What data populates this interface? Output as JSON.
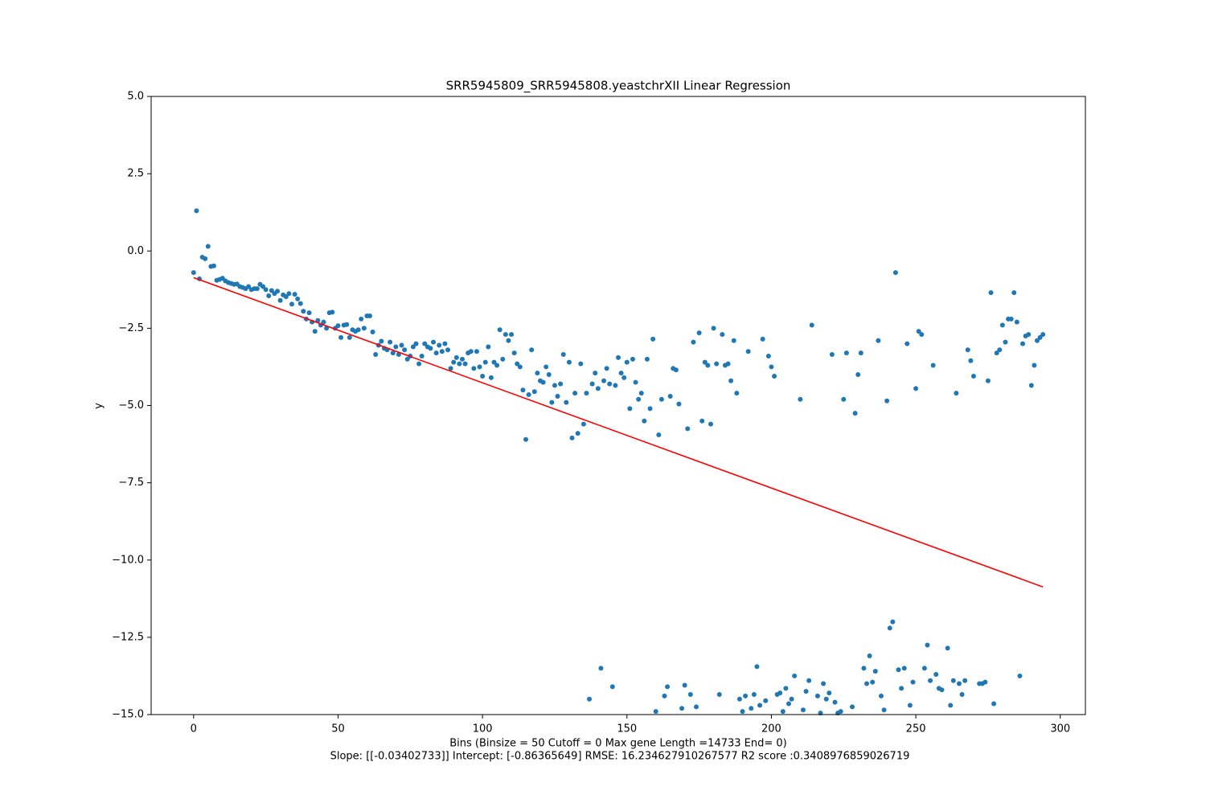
{
  "chart_data": {
    "type": "scatter",
    "title": "SRR5945809_SRR5945808.yeastchrXII Linear Regression",
    "xlabel_lines": [
      "Bins  (Binsize = 50 Cutoff = 0 Max gene Length =14733 End= 0)",
      "Slope: [[-0.03402733]] Intercept: [-0.86365649] RMSE: 16.234627910267577 R2 score :0.3408976859026719"
    ],
    "ylabel": "y",
    "xlim": [
      -14.7,
      308.7
    ],
    "ylim": [
      -15,
      5
    ],
    "xticks": [
      0,
      50,
      100,
      150,
      200,
      250,
      300
    ],
    "yticks": [
      {
        "value": 5,
        "label": "5.0"
      },
      {
        "value": 2.5,
        "label": "2.5"
      },
      {
        "value": 0,
        "label": "0.0"
      },
      {
        "value": -2.5,
        "label": "−2.5"
      },
      {
        "value": -5,
        "label": "−5.0"
      },
      {
        "value": -7.5,
        "label": "−7.5"
      },
      {
        "value": -10,
        "label": "−10.0"
      },
      {
        "value": -12.5,
        "label": "−12.5"
      },
      {
        "value": -15,
        "label": "−15.0"
      }
    ],
    "points": {
      "color": "#1f77b4",
      "x": [
        0,
        1,
        2,
        3,
        4,
        5,
        6,
        7,
        8,
        9,
        10,
        11,
        12,
        13,
        14,
        15,
        16,
        17,
        18,
        19,
        20,
        21,
        22,
        23,
        24,
        25,
        26,
        27,
        28,
        29,
        30,
        31,
        32,
        33,
        34,
        35,
        36,
        37,
        38,
        39,
        40,
        41,
        42,
        43,
        44,
        45,
        46,
        47,
        48,
        49,
        50,
        51,
        52,
        53,
        54,
        55,
        56,
        57,
        58,
        59,
        60,
        61,
        62,
        63,
        64,
        65,
        66,
        67,
        68,
        69,
        70,
        71,
        72,
        73,
        74,
        75,
        76,
        77,
        78,
        79,
        80,
        81,
        82,
        83,
        84,
        85,
        86,
        87,
        88,
        89,
        90,
        91,
        92,
        93,
        94,
        95,
        96,
        97,
        98,
        99,
        100,
        101,
        102,
        103,
        104,
        105,
        106,
        107,
        108,
        109,
        110,
        111,
        112,
        113,
        114,
        115,
        116,
        117,
        118,
        119,
        120,
        121,
        122,
        123,
        124,
        125,
        126,
        127,
        128,
        129,
        130,
        131,
        132,
        133,
        134,
        135,
        136,
        137,
        138,
        139,
        140,
        141,
        142,
        143,
        144,
        145,
        146,
        147,
        148,
        149,
        150,
        151,
        152,
        153,
        154,
        155,
        156,
        157,
        158,
        159,
        160,
        161,
        162,
        163,
        164,
        165,
        166,
        167,
        168,
        169,
        170,
        171,
        172,
        173,
        174,
        175,
        176,
        177,
        178,
        179,
        180,
        181,
        182,
        183,
        184,
        185,
        186,
        187,
        188,
        189,
        190,
        191,
        192,
        193,
        194,
        195,
        196,
        197,
        198,
        199,
        200,
        201,
        202,
        203,
        204,
        205,
        206,
        207,
        208,
        210,
        211,
        212,
        213,
        214,
        216,
        217,
        218,
        219,
        220,
        221,
        222,
        223,
        224,
        225,
        226,
        228,
        229,
        230,
        231,
        232,
        233,
        234,
        235,
        236,
        237,
        238,
        239,
        240,
        241,
        242,
        243,
        244,
        245,
        246,
        247,
        248,
        249,
        250,
        251,
        252,
        253,
        254,
        255,
        256,
        257,
        258,
        259,
        261,
        262,
        263,
        264,
        265,
        266,
        267,
        268,
        269,
        270,
        272,
        273,
        274,
        275,
        276,
        277,
        278,
        279,
        280,
        281,
        282,
        283,
        284,
        285,
        286,
        287,
        288,
        289,
        290,
        291,
        292,
        293,
        294
      ],
      "values": [
        -0.7,
        1.3,
        -0.9,
        -0.2,
        -0.25,
        0.15,
        -0.5,
        -0.48,
        -0.95,
        -0.92,
        -0.88,
        -0.97,
        -1.02,
        -1.05,
        -1.08,
        -1.07,
        -1.15,
        -1.18,
        -1.22,
        -1.15,
        -1.25,
        -1.22,
        -1.22,
        -1.08,
        -1.15,
        -1.25,
        -1.45,
        -1.28,
        -1.38,
        -1.3,
        -1.6,
        -1.42,
        -1.48,
        -1.38,
        -1.72,
        -1.4,
        -1.55,
        -1.7,
        -1.95,
        -2.2,
        -2.0,
        -2.3,
        -2.6,
        -2.25,
        -2.4,
        -2.3,
        -2.5,
        -2.0,
        -1.98,
        -2.5,
        -2.42,
        -2.8,
        -2.4,
        -2.38,
        -2.8,
        -2.55,
        -2.6,
        -2.55,
        -2.2,
        -2.5,
        -2.1,
        -2.1,
        -2.62,
        -3.35,
        -3.05,
        -2.92,
        -3.15,
        -3.2,
        -2.95,
        -3.3,
        -3.1,
        -3.35,
        -3.05,
        -3.2,
        -3.5,
        -3.4,
        -3.1,
        -3.0,
        -3.65,
        -3.4,
        -3.0,
        -3.1,
        -3.15,
        -2.95,
        -3.3,
        -3.05,
        -3.25,
        -3.0,
        -3.2,
        -3.8,
        -3.6,
        -3.45,
        -3.65,
        -3.5,
        -3.65,
        -3.3,
        -3.25,
        -3.8,
        -3.25,
        -3.75,
        -4.05,
        -3.6,
        -3.1,
        -4.1,
        -3.6,
        -3.7,
        -2.55,
        -3.5,
        -2.7,
        -2.9,
        -2.7,
        -3.3,
        -3.65,
        -3.75,
        -4.5,
        -6.1,
        -4.65,
        -3.2,
        -4.55,
        -3.95,
        -4.2,
        -4.25,
        -3.75,
        -4.0,
        -4.9,
        -4.35,
        -4.7,
        -4.3,
        -3.35,
        -4.9,
        -3.6,
        -6.05,
        -4.6,
        -5.9,
        -3.65,
        -5.6,
        -4.6,
        -14.5,
        -4.3,
        -3.95,
        -4.45,
        -13.5,
        -4.2,
        -3.8,
        -4.3,
        -14.1,
        -4.35,
        -3.45,
        -3.95,
        -4.1,
        -3.6,
        -5.1,
        -3.5,
        -4.25,
        -4.8,
        -4.6,
        -5.5,
        -3.5,
        -5.1,
        -2.85,
        -14.9,
        -5.95,
        -4.8,
        -14.4,
        -14.1,
        -4.7,
        -3.8,
        -3.85,
        -4.95,
        -14.8,
        -14.05,
        -5.75,
        -14.35,
        -2.95,
        -14.75,
        -2.65,
        -5.5,
        -3.6,
        -3.7,
        -5.6,
        -2.5,
        -3.65,
        -14.35,
        -2.7,
        -3.7,
        -3.65,
        -4.2,
        -2.9,
        -4.6,
        -14.5,
        -14.9,
        -14.4,
        -3.25,
        -14.8,
        -14.35,
        -13.45,
        -14.7,
        -2.85,
        -14.55,
        -3.4,
        -3.75,
        -4.05,
        -14.35,
        -14.3,
        -14.9,
        -14.15,
        -14.65,
        -14.5,
        -13.75,
        -4.8,
        -14.85,
        -14.25,
        -13.9,
        -2.4,
        -14.4,
        -14.95,
        -14.0,
        -14.5,
        -14.3,
        -3.35,
        -14.6,
        -14.95,
        -14.9,
        -4.8,
        -3.3,
        -14.75,
        -5.25,
        -4.0,
        -3.3,
        -13.5,
        -14.0,
        -13.1,
        -13.95,
        -13.6,
        -2.9,
        -14.4,
        -14.85,
        -4.85,
        -12.2,
        -12.0,
        -0.7,
        -13.55,
        -14.15,
        -13.5,
        -3.0,
        -14.7,
        -13.95,
        -4.45,
        -2.6,
        -2.7,
        -13.5,
        -12.75,
        -13.9,
        -3.7,
        -13.7,
        -14.15,
        -14.2,
        -12.85,
        -14.7,
        -13.9,
        -4.6,
        -14.0,
        -14.35,
        -13.9,
        -3.2,
        -3.55,
        -4.05,
        -14.0,
        -14.0,
        -13.95,
        -4.2,
        -1.35,
        -14.65,
        -3.3,
        -3.2,
        -2.4,
        -2.95,
        -2.2,
        -2.2,
        -1.35,
        -2.3,
        -13.75,
        -3.0,
        -2.75,
        -2.7,
        -4.35,
        -3.7,
        -2.9,
        -2.8,
        -2.7
      ]
    },
    "fit_line": {
      "color": "red",
      "x": [
        0,
        294
      ],
      "values": [
        -0.86,
        -10.87
      ]
    }
  }
}
